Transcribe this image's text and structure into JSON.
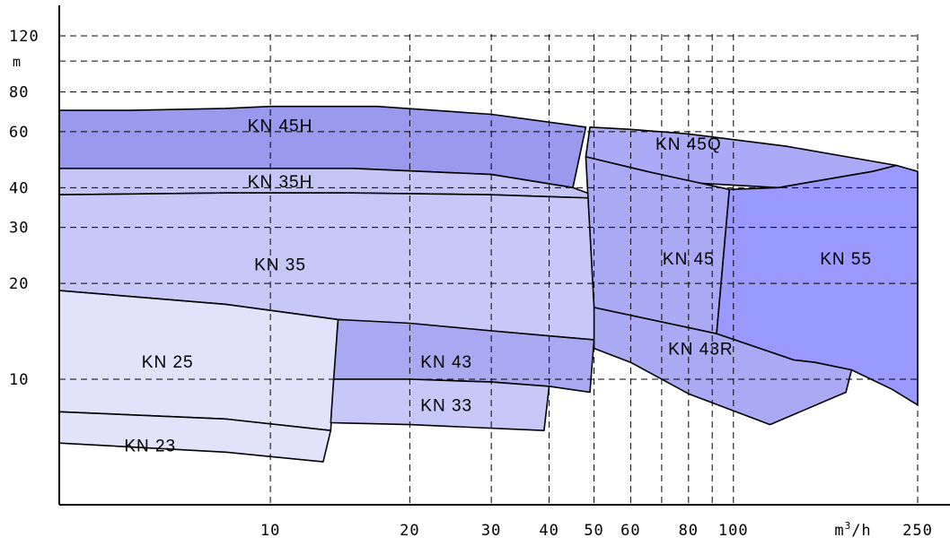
{
  "chart_data": {
    "type": "area",
    "x_scale": "log",
    "y_scale": "log",
    "xlim": [
      3.5,
      260
    ],
    "ylim": [
      5.2,
      140
    ],
    "x_ticks": [
      {
        "value": 10,
        "label": "10"
      },
      {
        "value": 20,
        "label": "20"
      },
      {
        "value": 30,
        "label": "30"
      },
      {
        "value": 40,
        "label": "40"
      },
      {
        "value": 50,
        "label": "50"
      },
      {
        "value": 60,
        "label": "60"
      },
      {
        "value": 80,
        "label": "80"
      },
      {
        "value": 100,
        "label": "100"
      },
      {
        "value": 250,
        "label": "250"
      }
    ],
    "x_extra_gridlines": [
      70,
      90
    ],
    "x_unit_label": "m³/h",
    "y_ticks": [
      {
        "value": 10,
        "label": "10"
      },
      {
        "value": 20,
        "label": "20"
      },
      {
        "value": 30,
        "label": "30"
      },
      {
        "value": 40,
        "label": "40"
      },
      {
        "value": 60,
        "label": "60"
      },
      {
        "value": 80,
        "label": "80"
      },
      {
        "value": 120,
        "label": "120"
      }
    ],
    "y_extra_gridlines": [
      100
    ],
    "y_unit_label": "m",
    "grid": true,
    "series": [
      {
        "name": "KN 45H",
        "color": "#9999ee",
        "label_at": [
          10.5,
          63
        ],
        "polygon": [
          [
            3.5,
            70
          ],
          [
            5,
            70
          ],
          [
            8,
            71
          ],
          [
            10,
            72
          ],
          [
            17,
            72
          ],
          [
            30,
            68
          ],
          [
            48,
            62
          ],
          [
            45,
            40
          ],
          [
            30,
            44
          ],
          [
            15,
            46
          ],
          [
            8,
            46
          ],
          [
            3.5,
            46
          ]
        ]
      },
      {
        "name": "KN 35H",
        "color": "#c4c4f5",
        "label_at": [
          10.5,
          42
        ],
        "polygon": [
          [
            3.5,
            46
          ],
          [
            8,
            46
          ],
          [
            15,
            46
          ],
          [
            30,
            44
          ],
          [
            45,
            40
          ],
          [
            52,
            37
          ],
          [
            30,
            38
          ],
          [
            15,
            38.5
          ],
          [
            8,
            38.5
          ],
          [
            3.5,
            38
          ]
        ]
      },
      {
        "name": "KN 35",
        "color": "#c8c8f8",
        "label_at": [
          10.5,
          23
        ],
        "polygon": [
          [
            3.5,
            38
          ],
          [
            8,
            38.5
          ],
          [
            15,
            38.5
          ],
          [
            30,
            38
          ],
          [
            52,
            37
          ],
          [
            50,
            13.3
          ],
          [
            30,
            14.2
          ],
          [
            15,
            15.3
          ],
          [
            14,
            15.4
          ],
          [
            8,
            17.2
          ],
          [
            3.5,
            19
          ]
        ]
      },
      {
        "name": "KN 25",
        "color": "#e2e2fa",
        "label_at": [
          6,
          11.4
        ],
        "polygon": [
          [
            3.5,
            19
          ],
          [
            8,
            17.2
          ],
          [
            14,
            15.4
          ],
          [
            13.5,
            6.9
          ],
          [
            8,
            7.5
          ],
          [
            3.5,
            7.9
          ]
        ]
      },
      {
        "name": "KN 23",
        "color": "#e2e2fa",
        "label_at": [
          5.5,
          6.2
        ],
        "polygon": [
          [
            3.5,
            7.9
          ],
          [
            8,
            7.5
          ],
          [
            13.5,
            6.9
          ],
          [
            13,
            5.5
          ],
          [
            8,
            5.9
          ],
          [
            3.5,
            6.3
          ]
        ]
      },
      {
        "name": "KN 43",
        "color": "#a9a9f2",
        "label_at": [
          24,
          11.4
        ],
        "polygon": [
          [
            14,
            15.4
          ],
          [
            20,
            15
          ],
          [
            30,
            14.2
          ],
          [
            50,
            13.3
          ],
          [
            49,
            9.1
          ],
          [
            40,
            9.5
          ],
          [
            30,
            9.8
          ],
          [
            20,
            10
          ],
          [
            13.7,
            10
          ]
        ]
      },
      {
        "name": "KN 33",
        "color": "#c8c8f8",
        "label_at": [
          24,
          8.3
        ],
        "polygon": [
          [
            13.7,
            10
          ],
          [
            20,
            10
          ],
          [
            30,
            9.8
          ],
          [
            40,
            9.5
          ],
          [
            39,
            6.9
          ],
          [
            20,
            7.2
          ],
          [
            13.5,
            7.3
          ]
        ]
      },
      {
        "name": "KN 45Q",
        "color": "#aaaaf6",
        "label_at": [
          80,
          55
        ],
        "polygon": [
          [
            49,
            62
          ],
          [
            60,
            61
          ],
          [
            80,
            59
          ],
          [
            130,
            54
          ],
          [
            225,
            47
          ],
          [
            200,
            45
          ],
          [
            125,
            40
          ],
          [
            80,
            41.5
          ],
          [
            65,
            45
          ],
          [
            48,
            50
          ]
        ]
      },
      {
        "name": "KN 45",
        "color": "#aaaaf4",
        "label_at": [
          80,
          24
        ],
        "polygon": [
          [
            48,
            50
          ],
          [
            65,
            45
          ],
          [
            98,
            39.5
          ],
          [
            92,
            13.9
          ],
          [
            50,
            16.8
          ]
        ]
      },
      {
        "name": "KN 55",
        "color": "#9999ff",
        "label_at": [
          175,
          24
        ],
        "polygon": [
          [
            98,
            39.5
          ],
          [
            125,
            40
          ],
          [
            200,
            45
          ],
          [
            225,
            47
          ],
          [
            250,
            45
          ],
          [
            250,
            8.3
          ],
          [
            220,
            9.3
          ],
          [
            180,
            10.7
          ],
          [
            150,
            11.3
          ],
          [
            135,
            11.5
          ],
          [
            92,
            13.9
          ]
        ]
      },
      {
        "name": "KN 43R",
        "color": "#aaaaf4",
        "label_at": [
          85,
          12.5
        ],
        "polygon": [
          [
            50,
            16.8
          ],
          [
            92,
            13.9
          ],
          [
            135,
            11.5
          ],
          [
            150,
            11.3
          ],
          [
            180,
            10.7
          ],
          [
            175,
            9.1
          ],
          [
            120,
            7.2
          ],
          [
            80,
            9
          ],
          [
            60,
            11.3
          ],
          [
            50,
            12.5
          ]
        ]
      }
    ]
  }
}
